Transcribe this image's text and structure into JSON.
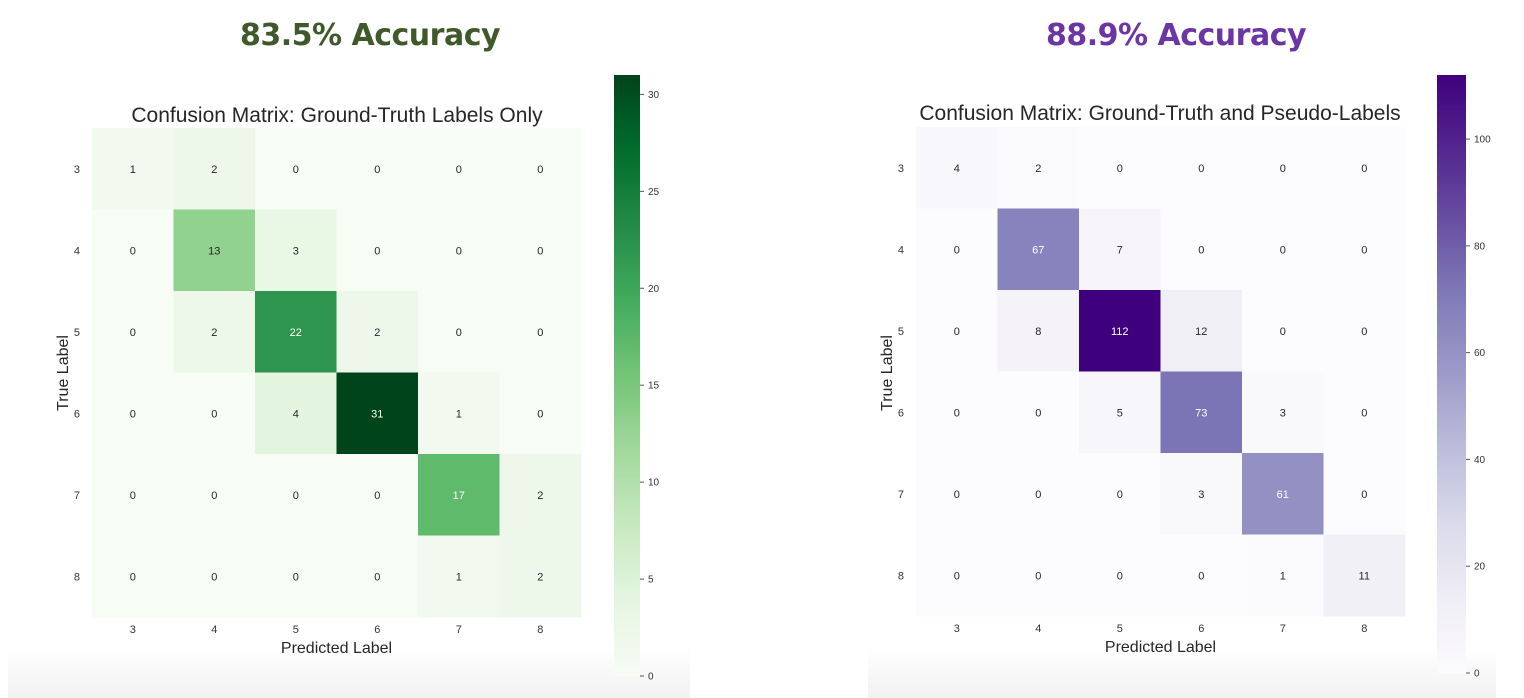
{
  "headers": {
    "left_accuracy": "83.5% Accuracy",
    "right_accuracy": "88.9% Accuracy"
  },
  "colors": {
    "left_header": "#3e5a2a",
    "right_header": "#6b35a3"
  },
  "chart_data": [
    {
      "type": "heatmap",
      "title": "Confusion Matrix: Ground-Truth Labels Only",
      "xlabel": "Predicted Label",
      "ylabel": "True Label",
      "x_categories": [
        "3",
        "4",
        "5",
        "6",
        "7",
        "8"
      ],
      "y_categories": [
        "3",
        "4",
        "5",
        "6",
        "7",
        "8"
      ],
      "values": [
        [
          1,
          2,
          0,
          0,
          0,
          0
        ],
        [
          0,
          13,
          3,
          0,
          0,
          0
        ],
        [
          0,
          2,
          22,
          2,
          0,
          0
        ],
        [
          0,
          0,
          4,
          31,
          1,
          0
        ],
        [
          0,
          0,
          0,
          0,
          17,
          2
        ],
        [
          0,
          0,
          0,
          0,
          1,
          2
        ]
      ],
      "colormap": "Greens",
      "vmin": 0,
      "vmax": 31,
      "colorbar_ticks": [
        0,
        5,
        10,
        15,
        20,
        25,
        30
      ]
    },
    {
      "type": "heatmap",
      "title": "Confusion Matrix: Ground-Truth and Pseudo-Labels",
      "xlabel": "Predicted Label",
      "ylabel": "True Label",
      "x_categories": [
        "3",
        "4",
        "5",
        "6",
        "7",
        "8"
      ],
      "y_categories": [
        "3",
        "4",
        "5",
        "6",
        "7",
        "8"
      ],
      "values": [
        [
          4,
          2,
          0,
          0,
          0,
          0
        ],
        [
          0,
          67,
          7,
          0,
          0,
          0
        ],
        [
          0,
          8,
          112,
          12,
          0,
          0
        ],
        [
          0,
          0,
          5,
          73,
          3,
          0
        ],
        [
          0,
          0,
          0,
          3,
          61,
          0
        ],
        [
          0,
          0,
          0,
          0,
          1,
          11
        ]
      ],
      "colormap": "Purples",
      "vmin": 0,
      "vmax": 112,
      "colorbar_ticks": [
        0,
        20,
        40,
        60,
        80,
        100
      ]
    }
  ]
}
